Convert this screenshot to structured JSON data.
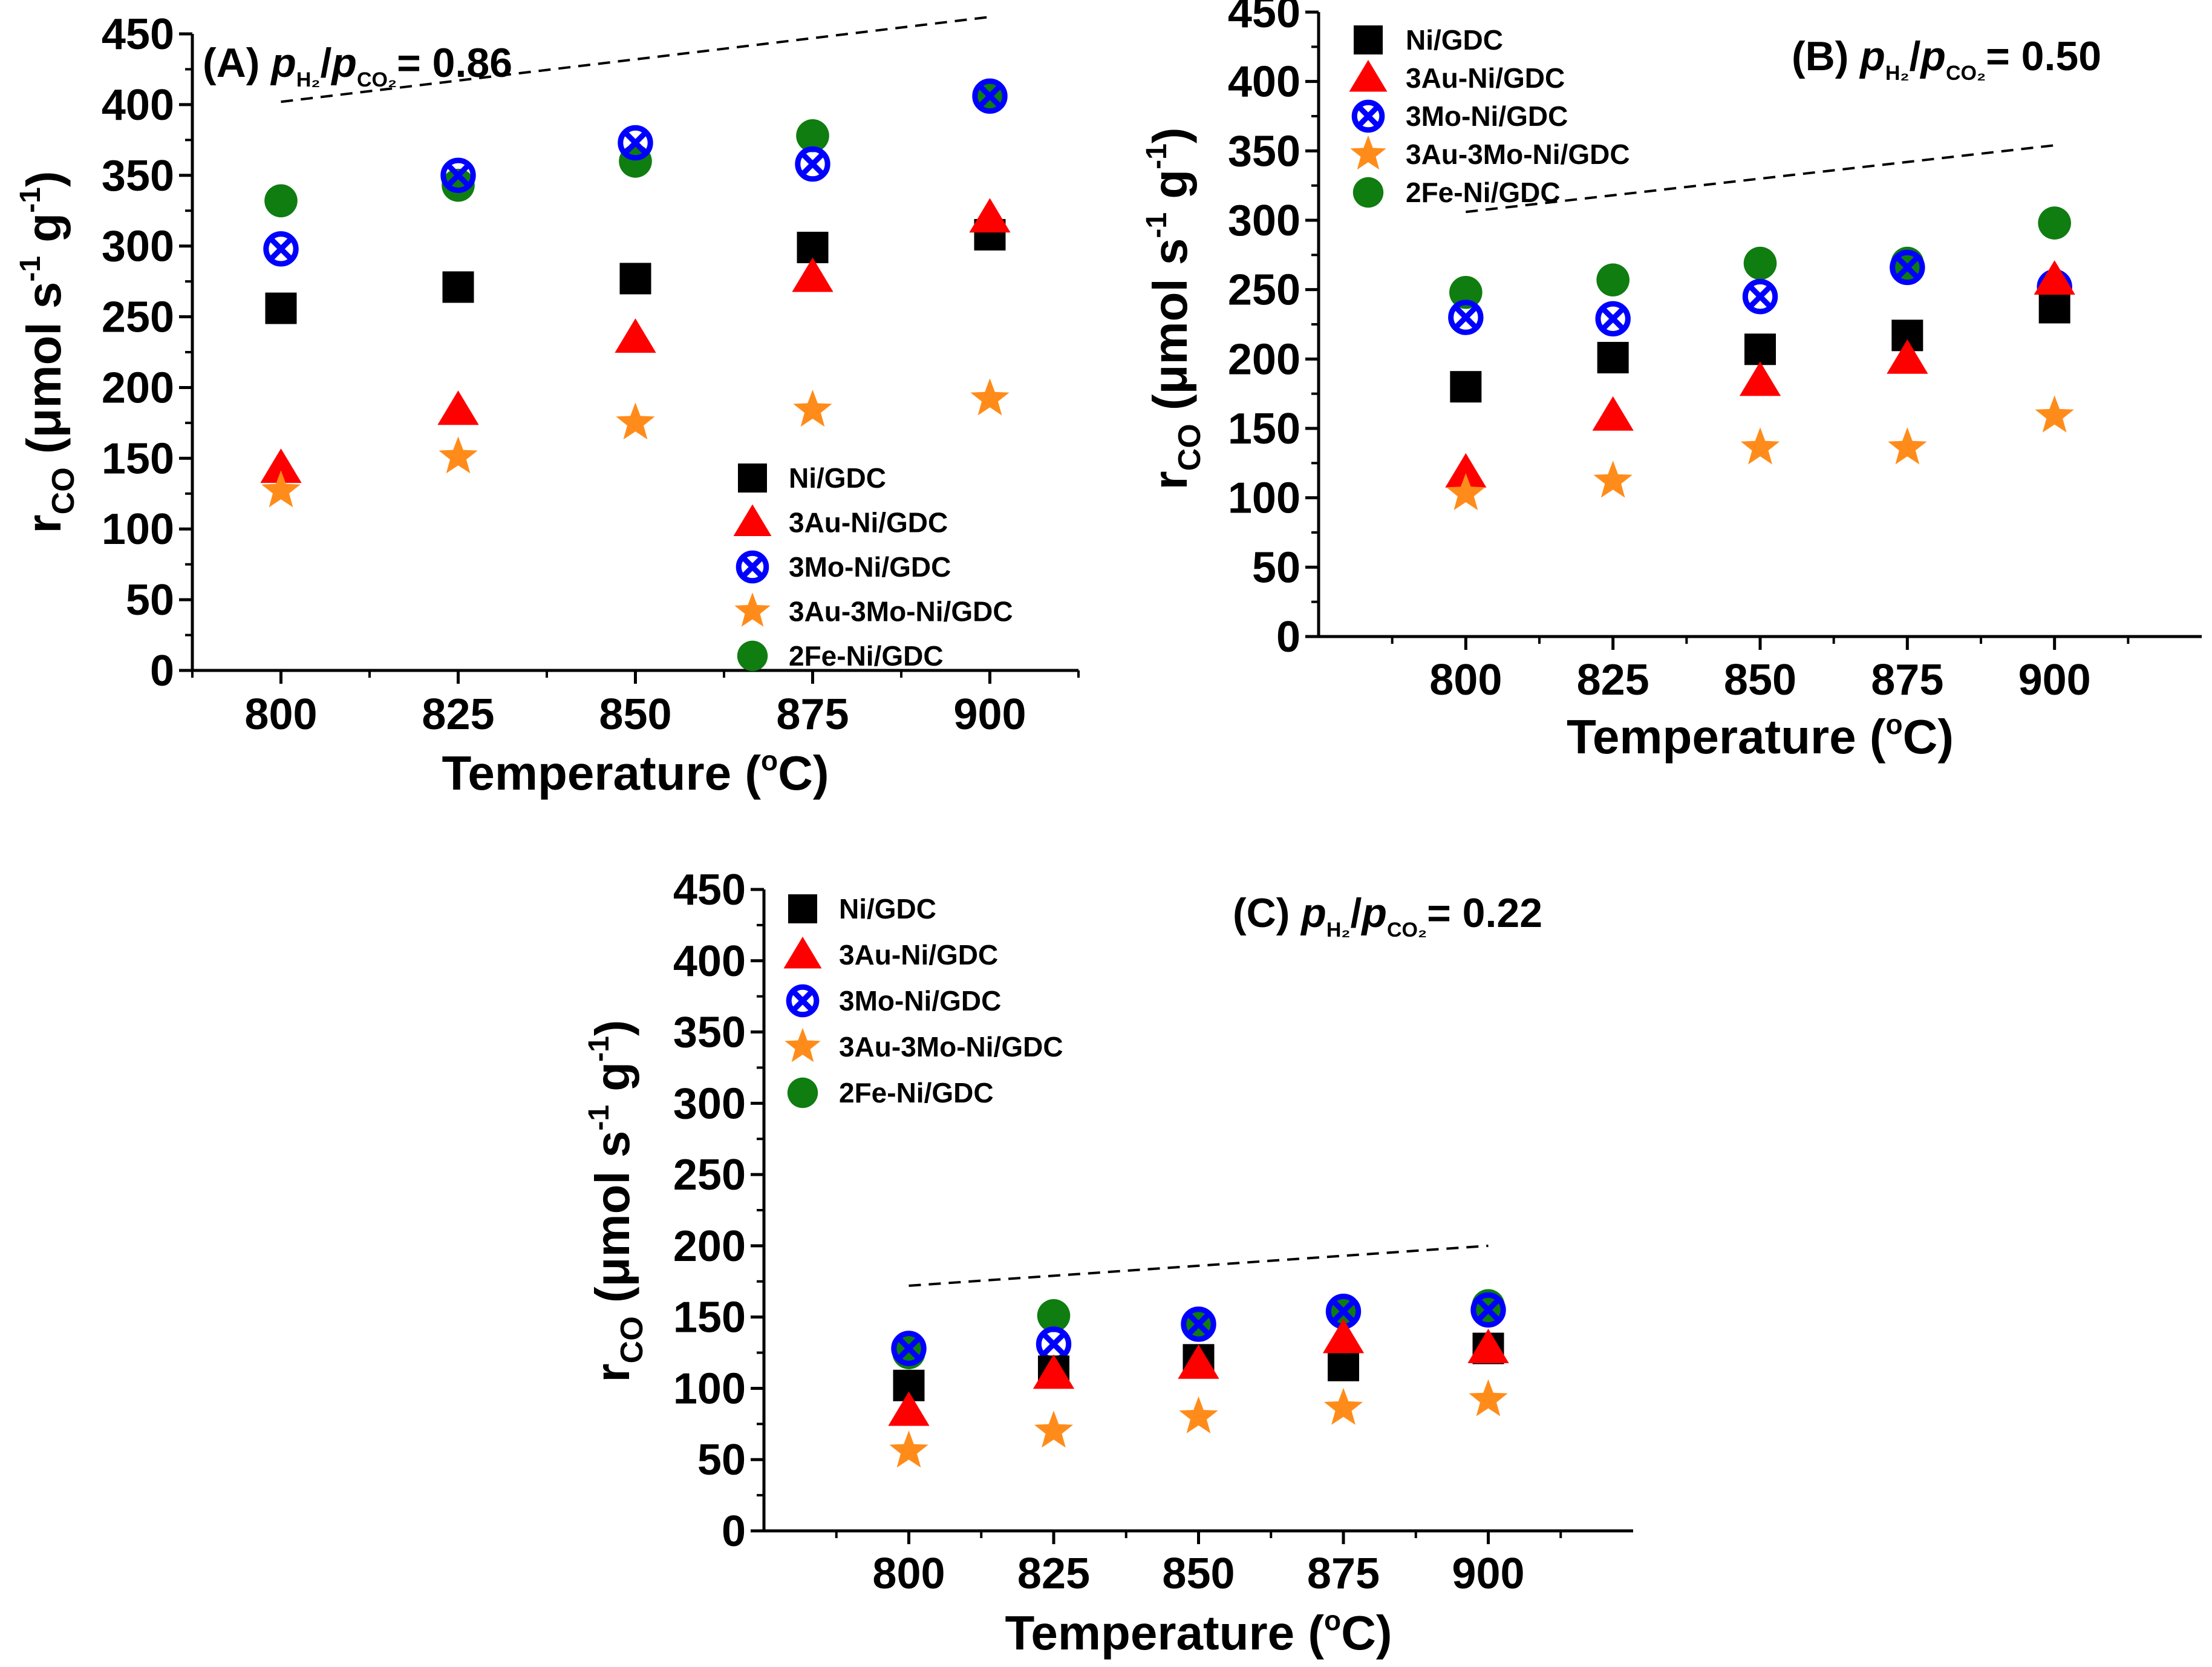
{
  "figure": {
    "type": "multi-panel scatter"
  },
  "chart_data": [
    {
      "type": "scatter",
      "panel_label": "(A)",
      "ratio_value": "= 0.86",
      "ratio_num_symbol": "p",
      "ratio_num_sub": "H₂",
      "ratio_den_symbol": "p",
      "ratio_den_sub": "CO₂",
      "xlabel_main": "Temperature (",
      "xlabel_deg": "o",
      "xlabel_unit": "C)",
      "ylabel_base": "r",
      "ylabel_sub": "CO",
      "ylabel_units_start": " (μmol s",
      "ylabel_exp1": "-1",
      "ylabel_mid": " g",
      "ylabel_exp2": "-1",
      "ylabel_end": ")",
      "xlim": [
        787.5,
        912.5
      ],
      "ylim": [
        0,
        450
      ],
      "xticks": [
        "800",
        "825",
        "850",
        "875",
        "900"
      ],
      "yticks": [
        "0",
        "50",
        "100",
        "150",
        "200",
        "250",
        "300",
        "350",
        "400",
        "450"
      ],
      "x": [
        800,
        825,
        850,
        875,
        900
      ],
      "legend_position": "bottom-right",
      "series": [
        {
          "name": "Ni/GDC",
          "marker": "square",
          "color": "#000000",
          "values": [
            256,
            271,
            277,
            299,
            308
          ]
        },
        {
          "name": "3Au-Ni/GDC",
          "marker": "triangle",
          "color": "#ff0000",
          "values": [
            143,
            184,
            235,
            278,
            320
          ]
        },
        {
          "name": "3Mo-Ni/GDC",
          "marker": "circle-x",
          "color": "#0000ff",
          "values": [
            298,
            350,
            373,
            358,
            406
          ]
        },
        {
          "name": "3Au-3Mo-Ni/GDC",
          "marker": "star",
          "color": "#ff8c1a",
          "values": [
            127,
            151,
            175,
            184,
            192
          ]
        },
        {
          "name": "2Fe-Ni/GDC",
          "marker": "circle",
          "color": "#0f7d10",
          "values": [
            332,
            343,
            360,
            378,
            406
          ]
        }
      ],
      "equilibrium_line": {
        "style": "dashed",
        "x": [
          800,
          900
        ],
        "y": [
          402,
          462
        ]
      }
    },
    {
      "type": "scatter",
      "panel_label": "(B)",
      "ratio_value": "= 0.50",
      "ratio_num_symbol": "p",
      "ratio_num_sub": "H₂",
      "ratio_den_symbol": "p",
      "ratio_den_sub": "CO₂",
      "xlabel_main": "Temperature (",
      "xlabel_deg": "o",
      "xlabel_unit": "C)",
      "ylabel_base": "r",
      "ylabel_sub": "CO",
      "ylabel_units_start": " (μmol s",
      "ylabel_exp1": "-1",
      "ylabel_mid": " g",
      "ylabel_exp2": "-1",
      "ylabel_end": ")",
      "xlim": [
        775,
        925
      ],
      "ylim": [
        0,
        450
      ],
      "xticks": [
        "800",
        "825",
        "850",
        "875",
        "900"
      ],
      "yticks": [
        "0",
        "50",
        "100",
        "150",
        "200",
        "250",
        "300",
        "350",
        "400",
        "450"
      ],
      "x": [
        800,
        825,
        850,
        875,
        900
      ],
      "legend_position": "top-left",
      "series": [
        {
          "name": "Ni/GDC",
          "marker": "square",
          "color": "#000000",
          "values": [
            180,
            201,
            207,
            217,
            237
          ]
        },
        {
          "name": "3Au-Ni/GDC",
          "marker": "triangle",
          "color": "#ff0000",
          "values": [
            118,
            159,
            184,
            200,
            257
          ]
        },
        {
          "name": "3Mo-Ni/GDC",
          "marker": "circle-x",
          "color": "#0000ff",
          "values": [
            230,
            229,
            245,
            266,
            252
          ]
        },
        {
          "name": "3Au-3Mo-Ni/GDC",
          "marker": "star",
          "color": "#ff8c1a",
          "values": [
            103,
            112,
            136,
            136,
            159
          ]
        },
        {
          "name": "2Fe-Ni/GDC",
          "marker": "circle",
          "color": "#0f7d10",
          "values": [
            248,
            257,
            269,
            269,
            298
          ]
        }
      ],
      "equilibrium_line": {
        "style": "dashed",
        "x": [
          800,
          900
        ],
        "y": [
          306,
          354
        ]
      }
    },
    {
      "type": "scatter",
      "panel_label": "(C)",
      "ratio_value": "= 0.22",
      "ratio_num_symbol": "p",
      "ratio_num_sub": "H₂",
      "ratio_den_symbol": "p",
      "ratio_den_sub": "CO₂",
      "xlabel_main": "Temperature (",
      "xlabel_deg": "o",
      "xlabel_unit": "C)",
      "ylabel_base": "r",
      "ylabel_sub": "CO",
      "ylabel_units_start": " (μmol s",
      "ylabel_exp1": "-1",
      "ylabel_mid": " g",
      "ylabel_exp2": "-1",
      "ylabel_end": ")",
      "xlim": [
        775,
        925
      ],
      "ylim": [
        0,
        450
      ],
      "xticks": [
        "800",
        "825",
        "850",
        "875",
        "900"
      ],
      "yticks": [
        "0",
        "50",
        "100",
        "150",
        "200",
        "250",
        "300",
        "350",
        "400",
        "450"
      ],
      "x": [
        800,
        825,
        850,
        875,
        900
      ],
      "legend_position": "top-left",
      "series": [
        {
          "name": "Ni/GDC",
          "marker": "square",
          "color": "#000000",
          "values": [
            102,
            112,
            120,
            116,
            128
          ]
        },
        {
          "name": "3Au-Ni/GDC",
          "marker": "triangle",
          "color": "#ff0000",
          "values": [
            84,
            110,
            117,
            135,
            128
          ]
        },
        {
          "name": "3Mo-Ni/GDC",
          "marker": "circle-x",
          "color": "#0000ff",
          "values": [
            128,
            131,
            145,
            154,
            155
          ]
        },
        {
          "name": "3Au-3Mo-Ni/GDC",
          "marker": "star",
          "color": "#ff8c1a",
          "values": [
            56,
            70,
            80,
            86,
            92
          ]
        },
        {
          "name": "2Fe-Ni/GDC",
          "marker": "circle",
          "color": "#0f7d10",
          "values": [
            125,
            151,
            145,
            153,
            158
          ]
        }
      ],
      "equilibrium_line": {
        "style": "dashed",
        "x": [
          800,
          900
        ],
        "y": [
          172,
          200
        ]
      }
    }
  ]
}
